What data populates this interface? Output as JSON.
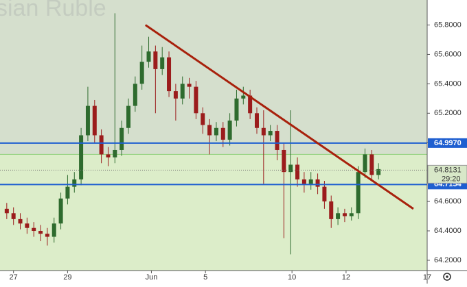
{
  "chart_data": {
    "type": "candlestick",
    "watermark": "sian Ruble",
    "x": [
      -0.25,
      0,
      0.25,
      0.5,
      0.75,
      1,
      1.25,
      1.5,
      1.75,
      2,
      2.25,
      2.5,
      2.75,
      3,
      3.25,
      3.5,
      3.75,
      4,
      4.25,
      4.5,
      4.75,
      5,
      5.25,
      5.5,
      5.75,
      6,
      6.25,
      6.5,
      6.75,
      7,
      7.25,
      7.5,
      7.75,
      8,
      8.25,
      8.5,
      8.75,
      9,
      9.25,
      9.5,
      9.75,
      10,
      10.25,
      10.5,
      10.75,
      11,
      11.25,
      11.5,
      11.75,
      12,
      12.25,
      12.5,
      12.75,
      13,
      13.25,
      13.5
    ],
    "open": [
      64.55,
      64.52,
      64.48,
      64.45,
      64.42,
      64.4,
      64.38,
      64.36,
      64.45,
      64.62,
      64.7,
      64.75,
      65.05,
      65.25,
      65.05,
      64.92,
      64.9,
      64.95,
      65.1,
      65.25,
      65.4,
      65.55,
      65.62,
      65.5,
      65.58,
      65.35,
      65.3,
      65.4,
      65.38,
      65.2,
      65.12,
      65.05,
      65.1,
      65.02,
      65.15,
      65.3,
      65.32,
      65.2,
      65.1,
      65.05,
      65.08,
      64.95,
      64.8,
      64.85,
      64.75,
      64.72,
      64.75,
      64.7,
      64.6,
      64.48,
      64.52,
      64.5,
      64.52,
      64.8,
      64.92,
      64.78
    ],
    "high": [
      64.59,
      64.56,
      64.52,
      64.49,
      64.46,
      64.44,
      64.42,
      64.49,
      64.66,
      64.78,
      64.8,
      65.1,
      65.38,
      65.29,
      65.09,
      64.97,
      65.88,
      65.15,
      65.3,
      65.45,
      65.66,
      65.72,
      65.66,
      65.65,
      65.62,
      65.4,
      65.45,
      65.44,
      65.42,
      65.24,
      65.16,
      65.14,
      65.14,
      65.2,
      65.36,
      65.38,
      65.36,
      65.24,
      65.22,
      65.12,
      65.12,
      65.0,
      65.22,
      64.9,
      64.8,
      64.8,
      64.79,
      64.74,
      64.64,
      64.56,
      64.55,
      64.56,
      64.84,
      64.96,
      64.95,
      64.86
    ],
    "low": [
      64.48,
      64.44,
      64.41,
      64.38,
      64.36,
      64.33,
      64.3,
      64.32,
      64.41,
      64.58,
      64.66,
      64.71,
      65.01,
      65.0,
      64.86,
      64.84,
      64.86,
      64.91,
      65.06,
      65.21,
      65.36,
      65.51,
      65.2,
      65.46,
      65.31,
      65.15,
      65.26,
      65.3,
      65.16,
      65.06,
      64.92,
      65.01,
      64.97,
      64.98,
      65.11,
      65.26,
      65.16,
      65.06,
      64.72,
      65.01,
      64.88,
      64.35,
      64.24,
      64.7,
      64.66,
      64.68,
      64.65,
      64.55,
      64.42,
      64.44,
      64.46,
      64.47,
      64.48,
      64.76,
      64.74,
      64.75
    ],
    "close": [
      64.52,
      64.48,
      64.45,
      64.42,
      64.4,
      64.38,
      64.36,
      64.45,
      64.62,
      64.7,
      64.75,
      65.05,
      65.25,
      65.05,
      64.92,
      64.9,
      64.95,
      65.1,
      65.25,
      65.4,
      65.55,
      65.62,
      65.5,
      65.58,
      65.35,
      65.3,
      65.4,
      65.38,
      65.2,
      65.12,
      65.05,
      65.1,
      65.02,
      65.15,
      65.3,
      65.32,
      65.2,
      65.1,
      65.05,
      65.08,
      64.95,
      64.8,
      64.85,
      64.75,
      64.72,
      64.75,
      64.7,
      64.6,
      64.48,
      64.52,
      64.5,
      64.52,
      64.8,
      64.92,
      64.78,
      64.82
    ],
    "up_color": "#2e6b2e",
    "down_color": "#9b1c1c",
    "xlim": [
      -0.5,
      15.3
    ],
    "ylim": [
      64.13,
      65.97
    ],
    "xticks": [
      {
        "value": 0,
        "label": "27"
      },
      {
        "value": 2,
        "label": "29"
      },
      {
        "value": 5.1,
        "label": "Jun"
      },
      {
        "value": 7.1,
        "label": "5"
      },
      {
        "value": 10.3,
        "label": "10"
      },
      {
        "value": 12.3,
        "label": "12"
      },
      {
        "value": 15.3,
        "label": "17"
      }
    ],
    "yticks": [
      {
        "value": 64.2,
        "label": "64.2000"
      },
      {
        "value": 64.4,
        "label": "64.4000"
      },
      {
        "value": 64.6,
        "label": "64.6000"
      },
      {
        "value": 64.8,
        "label": "64.8000"
      },
      {
        "value": 65.0,
        "label": "65.0000"
      },
      {
        "value": 65.2,
        "label": "65.2000"
      },
      {
        "value": 65.4,
        "label": "65.4000"
      },
      {
        "value": 65.6,
        "label": "65.6000"
      },
      {
        "value": 65.8,
        "label": "65.8000"
      }
    ],
    "zone_boundary": 64.92,
    "levels": [
      {
        "value": 64.997,
        "label": "64.9970",
        "color": "#1f5fd0"
      },
      {
        "value": 64.7154,
        "label": "64.7154",
        "color": "#1f5fd0"
      }
    ],
    "last_price": {
      "value": 64.8131,
      "label": "64.8131",
      "countdown": "29:20"
    },
    "trendline": {
      "x": [
        4.88,
        14.79
      ],
      "y": [
        65.8,
        64.55
      ],
      "color": "#a8210c"
    }
  }
}
